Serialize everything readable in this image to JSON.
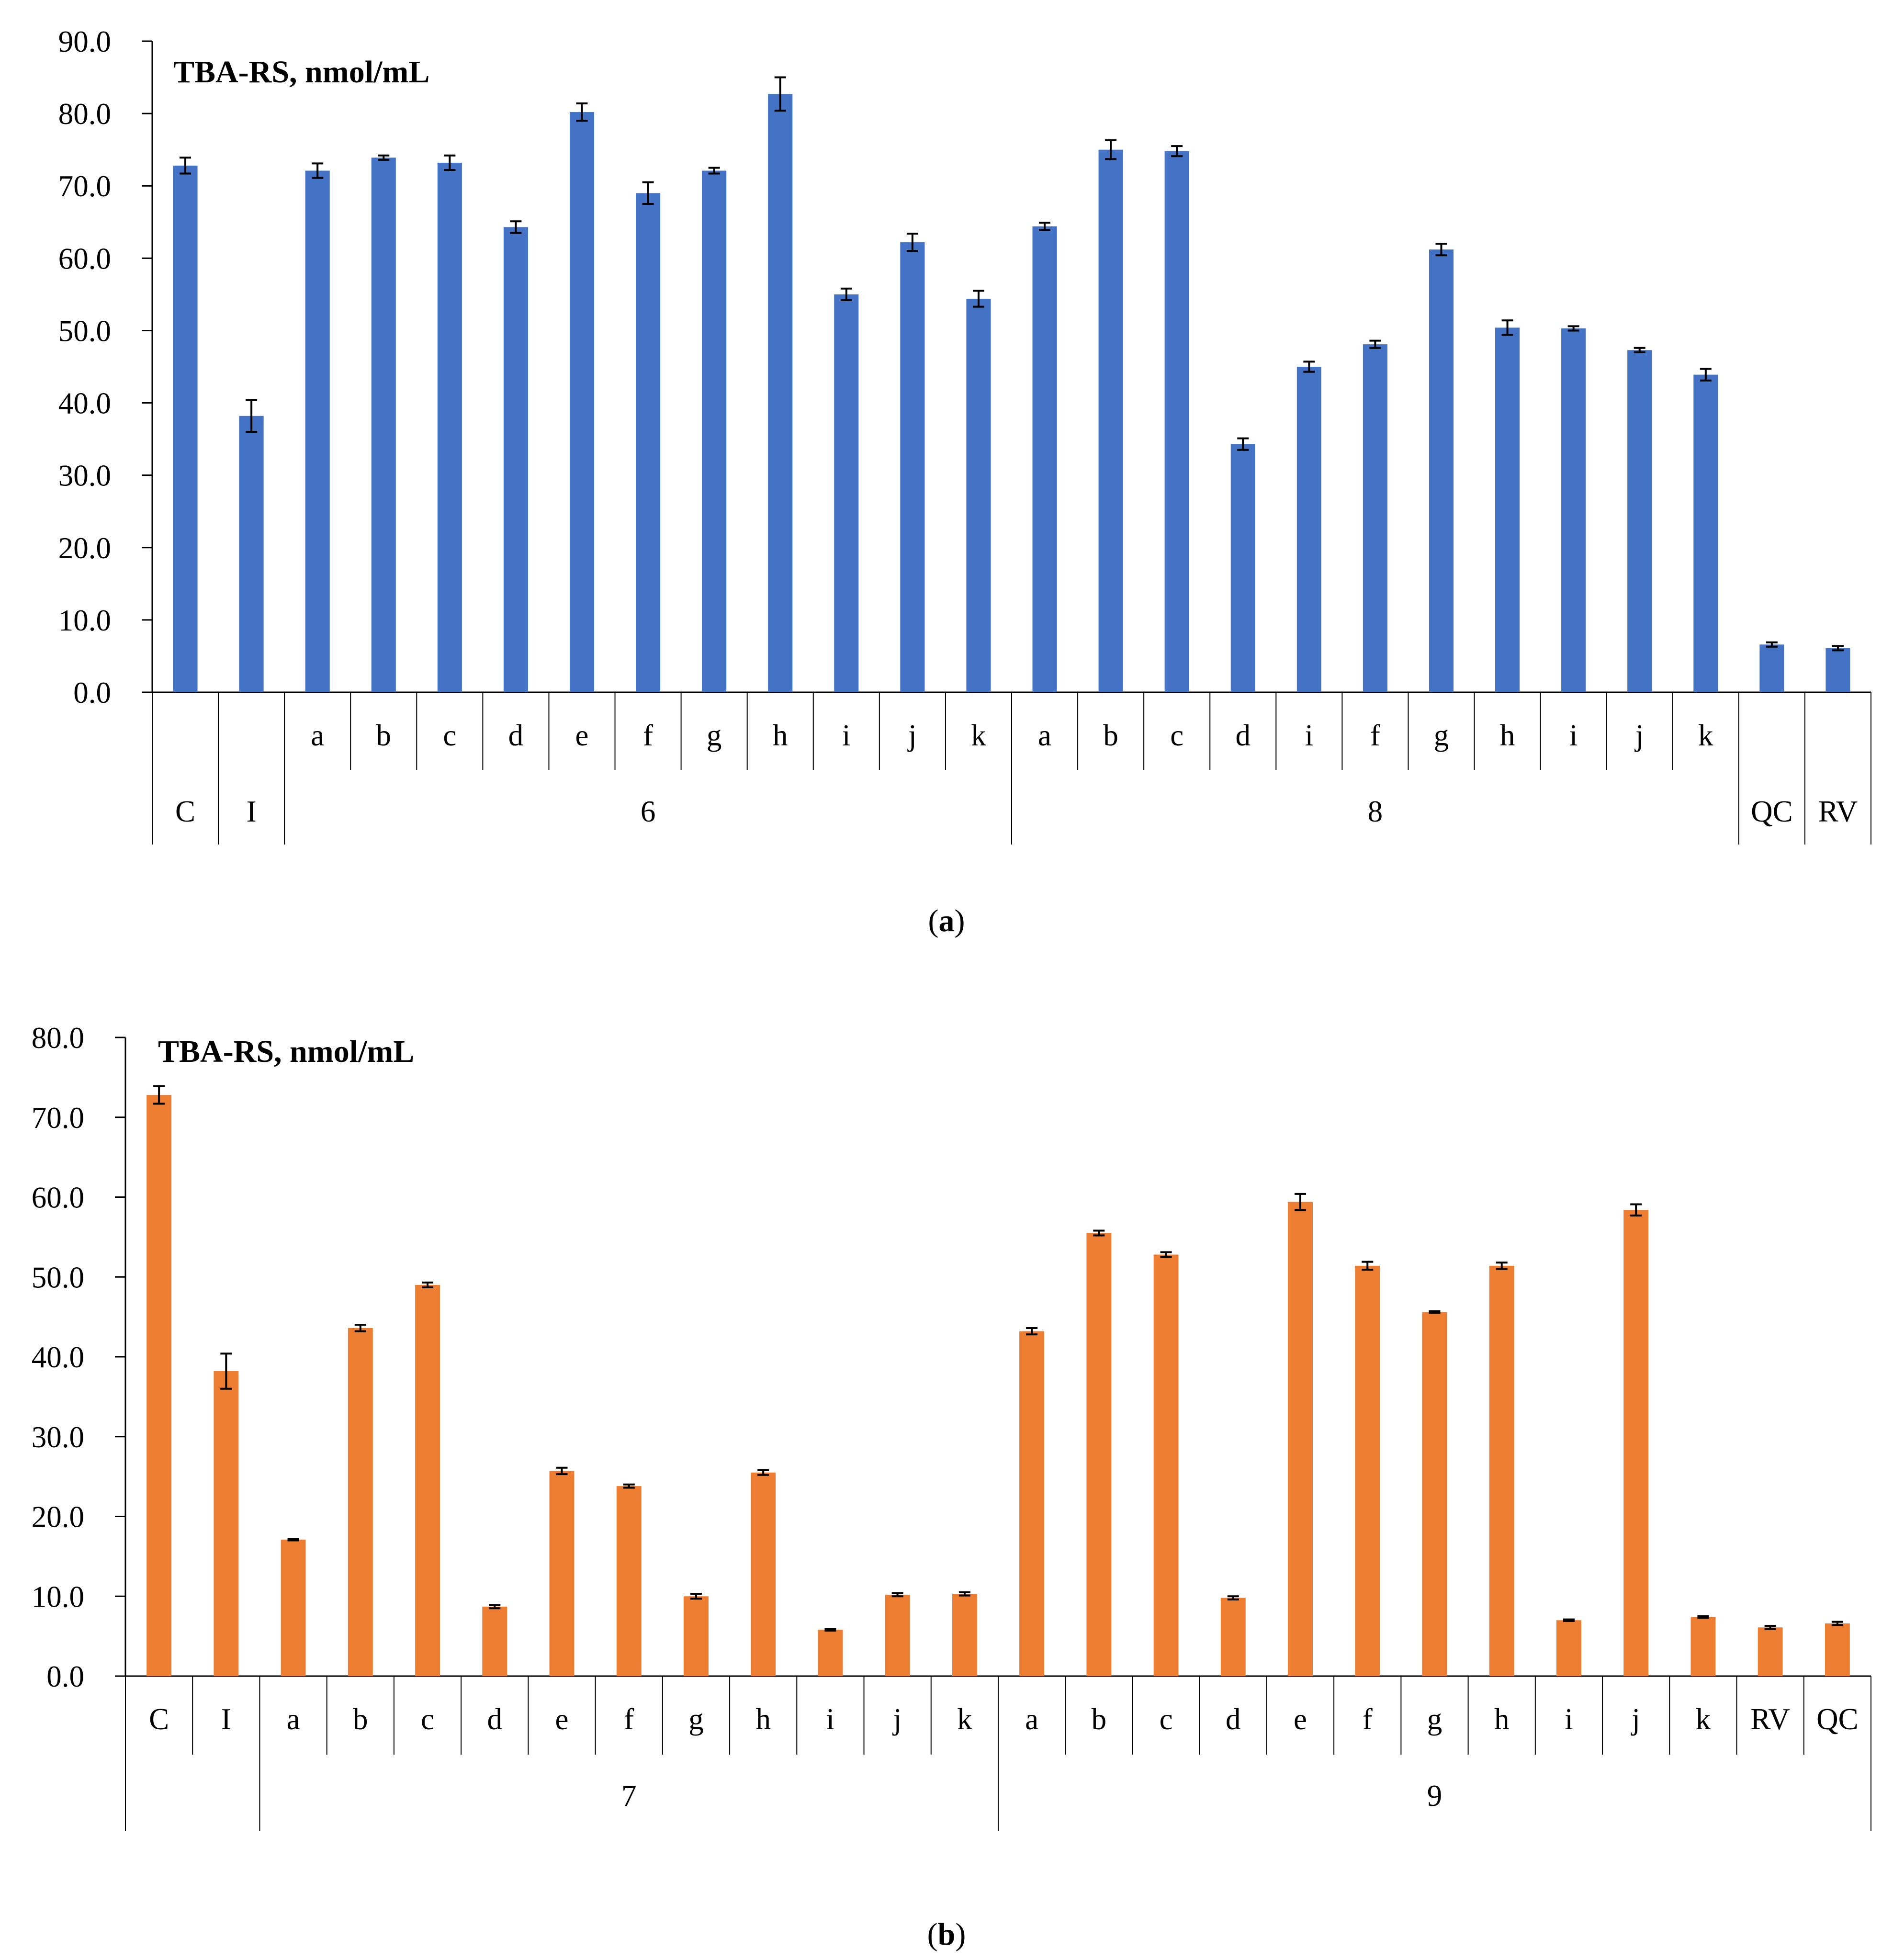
{
  "chart_data": [
    {
      "type": "bar",
      "title": "TBA-RS, nmol/mL",
      "caption_prefix": "(",
      "caption_letter": "a",
      "caption_suffix": ")",
      "ylim": [
        0,
        90
      ],
      "yticks": [
        "0.0",
        "10.0",
        "20.0",
        "30.0",
        "40.0",
        "50.0",
        "60.0",
        "70.0",
        "80.0",
        "90.0"
      ],
      "color": "#4472C4",
      "categories": [
        "",
        "",
        "a",
        "b",
        "c",
        "d",
        "e",
        "f",
        "g",
        "h",
        "i",
        "j",
        "k",
        "a",
        "b",
        "c",
        "d",
        "i",
        "f",
        "g",
        "h",
        "i",
        "j",
        "k",
        "",
        ""
      ],
      "values": [
        72.8,
        38.2,
        72.1,
        73.9,
        73.2,
        64.3,
        80.2,
        69.0,
        72.1,
        82.7,
        55.0,
        62.2,
        54.4,
        64.4,
        75.0,
        74.8,
        34.3,
        45.0,
        48.1,
        61.2,
        50.4,
        50.3,
        47.3,
        43.9,
        6.6,
        6.1
      ],
      "errors": [
        1.1,
        2.2,
        1.0,
        0.3,
        1.0,
        0.8,
        1.2,
        1.5,
        0.4,
        2.3,
        0.8,
        1.2,
        1.1,
        0.5,
        1.3,
        0.7,
        0.8,
        0.7,
        0.5,
        0.8,
        1.0,
        0.3,
        0.3,
        0.8,
        0.3,
        0.3
      ],
      "groups": [
        {
          "label": "C",
          "start": 0,
          "end": 1,
          "span_rows": true
        },
        {
          "label": "I",
          "start": 1,
          "end": 2,
          "span_rows": true
        },
        {
          "label": "6",
          "start": 2,
          "end": 13,
          "span_rows": false
        },
        {
          "label": "8",
          "start": 13,
          "end": 24,
          "span_rows": false
        },
        {
          "label": "QC",
          "start": 24,
          "end": 25,
          "span_rows": true
        },
        {
          "label": "RV",
          "start": 25,
          "end": 26,
          "span_rows": true
        }
      ]
    },
    {
      "type": "bar",
      "title": "TBA-RS, nmol/mL",
      "caption_prefix": "(",
      "caption_letter": "b",
      "caption_suffix": ")",
      "ylim": [
        0,
        80
      ],
      "yticks": [
        "0.0",
        "10.0",
        "20.0",
        "30.0",
        "40.0",
        "50.0",
        "60.0",
        "70.0",
        "80.0"
      ],
      "color": "#ED7D31",
      "categories": [
        "C",
        "I",
        "a",
        "b",
        "c",
        "d",
        "e",
        "f",
        "g",
        "h",
        "i",
        "j",
        "k",
        "a",
        "b",
        "c",
        "d",
        "e",
        "f",
        "g",
        "h",
        "i",
        "j",
        "k",
        "RV",
        "QC"
      ],
      "values": [
        72.8,
        38.2,
        17.1,
        43.6,
        49.0,
        8.7,
        25.7,
        23.8,
        10.0,
        25.5,
        5.8,
        10.2,
        10.3,
        43.2,
        55.5,
        52.8,
        9.8,
        59.4,
        51.4,
        45.6,
        51.4,
        7.0,
        58.4,
        7.4,
        6.1,
        6.6
      ],
      "errors": [
        1.1,
        2.2,
        0.1,
        0.4,
        0.3,
        0.2,
        0.4,
        0.2,
        0.3,
        0.3,
        0.1,
        0.2,
        0.2,
        0.4,
        0.3,
        0.3,
        0.2,
        1.0,
        0.5,
        0.1,
        0.4,
        0.1,
        0.7,
        0.1,
        0.2,
        0.2
      ],
      "groups": [
        {
          "label": "",
          "start": 0,
          "end": 2,
          "span_rows": false
        },
        {
          "label": "7",
          "start": 2,
          "end": 13,
          "span_rows": false
        },
        {
          "label": "9",
          "start": 13,
          "end": 26,
          "span_rows": false
        }
      ]
    }
  ]
}
